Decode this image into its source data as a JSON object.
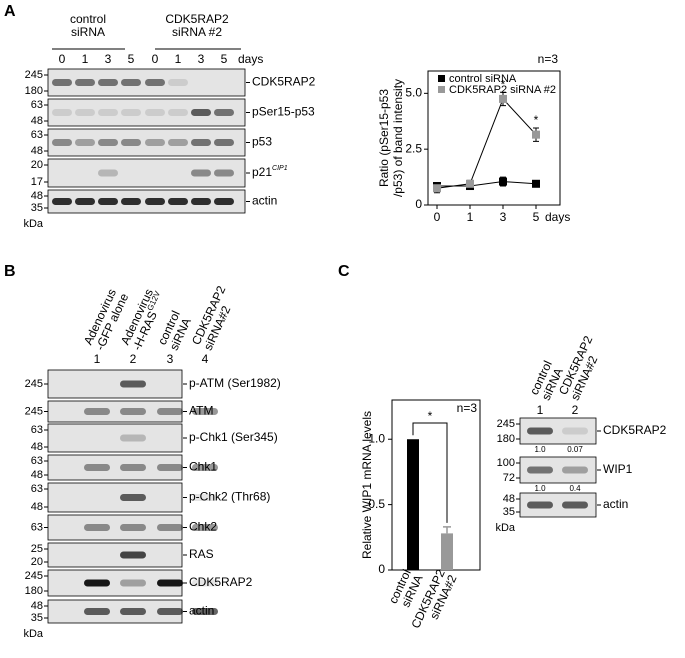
{
  "panel_labels": [
    "A",
    "B",
    "C"
  ],
  "blot_a": {
    "groups": [
      [
        "control",
        "siRNA"
      ],
      [
        "CDK5RAP2",
        "siRNA #2"
      ]
    ],
    "lanes": [
      "0",
      "1",
      "3",
      "5",
      "0",
      "1",
      "3",
      "5"
    ],
    "lane_unit": "days",
    "rows": [
      {
        "label": "CDK5RAP2",
        "markers": [
          "245",
          "180"
        ]
      },
      {
        "label": "pSer15-p53",
        "markers": [
          "63",
          "48"
        ]
      },
      {
        "label": "p53",
        "markers": [
          "63",
          "48"
        ]
      },
      {
        "label": "p21",
        "label_sup": "CIP1",
        "markers": [
          "20",
          "17"
        ]
      },
      {
        "label": "actin",
        "markers": [
          "48",
          "35"
        ]
      }
    ],
    "unit": "kDa"
  },
  "blot_b": {
    "lane_headers": [
      {
        "lines": [
          "Adenovirus",
          "-GFP alone"
        ]
      },
      {
        "lines": [
          "Adenovirus",
          "-H-RAS"
        ],
        "sup": "G12V"
      },
      {
        "lines": [
          "control",
          "siRNA"
        ]
      },
      {
        "lines": [
          "CDK5RAP2",
          "siRNA#2"
        ]
      }
    ],
    "lanes": [
      "1",
      "2",
      "3",
      "4"
    ],
    "rows": [
      {
        "label": "p-ATM (Ser1982)",
        "markers": [
          "245"
        ]
      },
      {
        "label": "ATM",
        "markers": [
          "245"
        ]
      },
      {
        "label": "p-Chk1 (Ser345)",
        "markers": [
          "63",
          "48"
        ]
      },
      {
        "label": "Chk1",
        "markers": [
          "63",
          "48"
        ]
      },
      {
        "label": "p-Chk2 (Thr68)",
        "markers": [
          "63",
          "48"
        ]
      },
      {
        "label": "Chk2",
        "markers": [
          "63"
        ]
      },
      {
        "label": "RAS",
        "markers": [
          "25",
          "20"
        ]
      },
      {
        "label": "CDK5RAP2",
        "markers": [
          "245",
          "180"
        ]
      },
      {
        "label": "actin",
        "markers": [
          "48",
          "35"
        ]
      }
    ],
    "unit": "kDa"
  },
  "blot_c": {
    "lane_headers": [
      {
        "lines": [
          "control",
          "siRNA"
        ]
      },
      {
        "lines": [
          "CDK5RAP2",
          "siRNA#2"
        ]
      }
    ],
    "lanes": [
      "1",
      "2"
    ],
    "rows": [
      {
        "label": "CDK5RAP2",
        "markers": [
          "245",
          "180"
        ],
        "quant": [
          "1.0",
          "0.07"
        ]
      },
      {
        "label": "WIP1",
        "markers": [
          "100",
          "72"
        ],
        "quant": [
          "1.0",
          "0.4"
        ]
      },
      {
        "label": "actin",
        "markers": [
          "48",
          "35"
        ]
      }
    ],
    "unit": "kDa"
  },
  "chart_data": [
    {
      "type": "line",
      "annotation": "n=3",
      "y_label": [
        "Ratio (pSer15-p53",
        "/p53) of band intensity"
      ],
      "categories": [
        "0",
        "1",
        "3",
        "5"
      ],
      "x_unit": "days",
      "series": [
        {
          "name": "control siRNA",
          "color": "#000000",
          "values": [
            0.85,
            0.85,
            1.05,
            0.95
          ],
          "errors": [
            0.15,
            0.1,
            0.2,
            0.12
          ]
        },
        {
          "name": "CDK5RAP2 siRNA #2",
          "color": "#999999",
          "values": [
            0.75,
            0.95,
            4.75,
            3.15
          ],
          "errors": [
            0.2,
            0.15,
            0.3,
            0.3
          ],
          "significance": [
            null,
            null,
            "*",
            "*"
          ]
        }
      ],
      "ylim": [
        0,
        6
      ],
      "yticks": [
        0,
        2.5,
        {
          "value": 5,
          "label": "5.0"
        }
      ],
      "legend": "top-left"
    },
    {
      "type": "bar",
      "annotation": "n=3",
      "y_label": "Relative WIP1 mRNA levels",
      "categories": [
        [
          "control",
          "siRNA"
        ],
        [
          "CDK5RAP2",
          "siRNA#2"
        ]
      ],
      "values": [
        1.0,
        0.28
      ],
      "errors": [
        null,
        0.05
      ],
      "colors": [
        "#000000",
        "#999999"
      ],
      "significance": "*",
      "ylim": [
        0,
        1.3
      ],
      "yticks": [
        0,
        0.5,
        {
          "value": 1,
          "label": "1.0"
        }
      ]
    }
  ]
}
